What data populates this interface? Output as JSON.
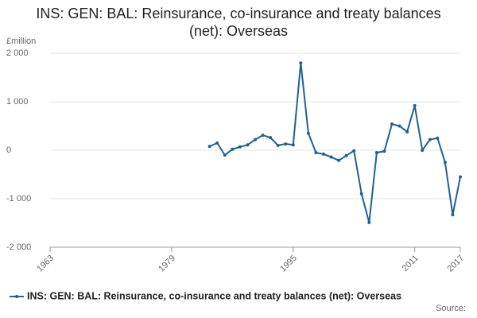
{
  "chart_data": {
    "type": "line",
    "title": "INS: GEN: BAL: Reinsurance, co-insurance and treaty balances (net): Overseas",
    "y_label": "£million",
    "source": "Source:",
    "x": [
      1984,
      1985,
      1986,
      1987,
      1988,
      1989,
      1990,
      1991,
      1992,
      1993,
      1994,
      1995,
      1996,
      1997,
      1998,
      1999,
      2000,
      2001,
      2002,
      2003,
      2004,
      2005,
      2006,
      2007,
      2008,
      2009,
      2010,
      2011,
      2012,
      2013,
      2014,
      2015,
      2016,
      2017
    ],
    "series": [
      {
        "name": "INS: GEN: BAL: Reinsurance, co-insurance and treaty balances (net): Overseas",
        "color": "#206095",
        "values": [
          80,
          150,
          -100,
          20,
          70,
          110,
          220,
          310,
          260,
          100,
          130,
          110,
          1800,
          350,
          -50,
          -80,
          -140,
          -210,
          -110,
          -10,
          -900,
          -1490,
          -50,
          -20,
          540,
          500,
          380,
          920,
          0,
          220,
          250,
          -250,
          -1330,
          -550
        ]
      }
    ],
    "xlim": [
      1963,
      2017
    ],
    "xticks": [
      1963,
      1979,
      1995,
      2011,
      2017
    ],
    "ylim": [
      -2000,
      2000
    ],
    "yticks": [
      {
        "value": -2000,
        "label": "-2 000"
      },
      {
        "value": -1000,
        "label": "-1 000"
      },
      0,
      {
        "value": 1000,
        "label": "1 000"
      },
      {
        "value": 2000,
        "label": "2 000"
      }
    ],
    "grid": true
  }
}
